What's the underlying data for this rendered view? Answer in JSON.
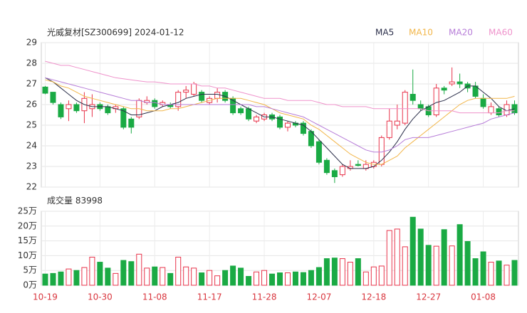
{
  "chart_data": {
    "type": "candlestick",
    "title": "光威复材[SZ300699] 2024-01-12",
    "categories": [
      "10-19",
      null,
      null,
      null,
      null,
      null,
      null,
      "10-30",
      null,
      null,
      null,
      null,
      null,
      null,
      "11-08",
      null,
      null,
      null,
      null,
      null,
      null,
      "11-17",
      null,
      null,
      null,
      null,
      null,
      null,
      "11-28",
      null,
      null,
      null,
      null,
      null,
      null,
      "12-07",
      null,
      null,
      null,
      null,
      null,
      null,
      "12-18",
      null,
      null,
      null,
      null,
      null,
      null,
      "12-27",
      null,
      null,
      null,
      null,
      null,
      null,
      "01-08",
      null,
      null,
      null,
      null
    ],
    "open": [
      26.85,
      26.6,
      26.0,
      25.8,
      26.0,
      25.7,
      25.8,
      26.0,
      25.9,
      25.8,
      25.8,
      25.3,
      25.4,
      26.1,
      26.2,
      26.0,
      26.0,
      25.9,
      26.6,
      26.5,
      26.6,
      26.1,
      26.3,
      26.6,
      26.3,
      25.8,
      25.8,
      25.2,
      25.3,
      25.5,
      25.4,
      24.9,
      25.1,
      25.1,
      24.7,
      24.2,
      23.3,
      22.8,
      22.6,
      22.9,
      23.1,
      22.9,
      23.0,
      23.1,
      24.4,
      25.0,
      25.1,
      26.5,
      26.0,
      25.9,
      25.5,
      26.8,
      27.0,
      27.1,
      27.0,
      26.9,
      26.3,
      25.6,
      25.8,
      25.5,
      26.0
    ],
    "high": [
      26.9,
      26.6,
      26.1,
      26.2,
      26.1,
      26.6,
      26.5,
      26.1,
      26.0,
      26.0,
      25.9,
      25.4,
      26.3,
      26.4,
      26.3,
      26.2,
      26.1,
      26.7,
      26.9,
      27.1,
      26.7,
      26.4,
      26.8,
      26.7,
      26.4,
      25.9,
      25.9,
      25.5,
      25.6,
      25.6,
      25.5,
      25.2,
      25.2,
      25.2,
      24.8,
      24.3,
      23.4,
      22.9,
      23.1,
      23.3,
      23.3,
      23.3,
      23.3,
      24.5,
      25.8,
      26.0,
      26.7,
      27.7,
      26.2,
      26.0,
      27.0,
      26.9,
      27.8,
      27.5,
      27.1,
      27.1,
      26.5,
      26.1,
      25.9,
      26.2,
      26.2
    ],
    "low": [
      26.5,
      26.0,
      25.3,
      25.2,
      25.6,
      25.1,
      25.4,
      25.7,
      25.5,
      25.6,
      24.8,
      24.6,
      25.3,
      26.0,
      25.8,
      25.9,
      25.8,
      25.7,
      26.3,
      26.4,
      26.1,
      26.0,
      26.1,
      26.1,
      25.5,
      25.5,
      25.2,
      25.1,
      25.2,
      25.2,
      24.8,
      24.7,
      24.9,
      24.5,
      23.9,
      23.1,
      22.6,
      22.2,
      22.5,
      22.8,
      23.0,
      22.8,
      22.9,
      23.0,
      24.3,
      24.8,
      25.0,
      26.0,
      25.7,
      25.4,
      25.4,
      26.5,
      26.9,
      26.8,
      26.6,
      26.3,
      25.8,
      25.5,
      25.4,
      25.4,
      25.5
    ],
    "close": [
      26.55,
      26.1,
      25.4,
      26.0,
      25.7,
      26.3,
      26.0,
      25.8,
      25.6,
      25.9,
      24.9,
      24.9,
      26.2,
      26.2,
      25.9,
      26.1,
      25.9,
      26.6,
      26.7,
      27.0,
      26.2,
      26.3,
      26.6,
      26.2,
      25.6,
      25.6,
      25.3,
      25.4,
      25.5,
      25.3,
      24.9,
      25.1,
      25.0,
      24.6,
      24.0,
      23.2,
      22.7,
      22.5,
      23.0,
      23.0,
      23.05,
      23.1,
      23.2,
      24.4,
      25.2,
      25.2,
      26.6,
      26.2,
      25.8,
      25.5,
      26.8,
      26.7,
      27.1,
      27.0,
      26.8,
      26.4,
      25.9,
      25.9,
      25.5,
      26.0,
      25.6
    ],
    "up_color": "#e8334a",
    "down_color": "#1aaa44",
    "series": [
      {
        "name": "MA5",
        "color": "#2b2f4a",
        "values": [
          27.3,
          27.1,
          26.8,
          26.5,
          26.2,
          26.0,
          25.9,
          25.9,
          25.9,
          25.8,
          25.7,
          25.5,
          25.5,
          25.6,
          25.7,
          25.9,
          26.0,
          26.1,
          26.3,
          26.4,
          26.5,
          26.5,
          26.5,
          26.4,
          26.2,
          26.0,
          25.8,
          25.6,
          25.4,
          25.4,
          25.3,
          25.2,
          25.1,
          25.0,
          24.7,
          24.3,
          23.9,
          23.5,
          23.1,
          22.9,
          22.9,
          22.9,
          23.0,
          23.3,
          23.7,
          24.2,
          24.8,
          25.3,
          25.7,
          25.9,
          26.1,
          26.2,
          26.4,
          26.6,
          26.9,
          26.9,
          26.6,
          26.3,
          25.9,
          25.7,
          25.8
        ]
      },
      {
        "name": "MA10",
        "color": "#f2b64a",
        "values": [
          27.2,
          27.1,
          26.9,
          26.8,
          26.6,
          26.4,
          26.3,
          26.2,
          26.1,
          26.0,
          25.9,
          25.8,
          25.8,
          25.7,
          25.7,
          25.7,
          25.8,
          25.8,
          25.9,
          26.0,
          26.1,
          26.2,
          26.3,
          26.3,
          26.3,
          26.3,
          26.2,
          26.1,
          26.0,
          25.8,
          25.6,
          25.5,
          25.4,
          25.3,
          25.0,
          24.8,
          24.5,
          24.2,
          23.9,
          23.6,
          23.4,
          23.2,
          23.1,
          23.1,
          23.3,
          23.5,
          23.9,
          24.2,
          24.5,
          24.8,
          25.1,
          25.4,
          25.7,
          26.0,
          26.2,
          26.3,
          26.3,
          26.3,
          26.3,
          26.3,
          26.4
        ]
      },
      {
        "name": "MA20",
        "color": "#b77dd8",
        "values": [
          27.3,
          27.2,
          27.1,
          27.0,
          26.9,
          26.8,
          26.7,
          26.6,
          26.5,
          26.4,
          26.3,
          26.2,
          26.2,
          26.1,
          26.1,
          26.0,
          26.0,
          26.0,
          26.0,
          26.0,
          26.0,
          26.0,
          26.0,
          26.0,
          26.0,
          26.0,
          26.0,
          25.9,
          25.9,
          25.8,
          25.7,
          25.6,
          25.5,
          25.4,
          25.2,
          25.0,
          24.8,
          24.6,
          24.4,
          24.2,
          24.0,
          23.8,
          23.7,
          23.7,
          23.8,
          24.0,
          24.3,
          24.4,
          24.4,
          24.4,
          24.5,
          24.6,
          24.7,
          24.8,
          24.9,
          25.0,
          25.1,
          25.3,
          25.4,
          25.5,
          25.6
        ]
      },
      {
        "name": "MA60",
        "color": "#ef92cb",
        "values": [
          28.1,
          28.0,
          27.9,
          27.9,
          27.8,
          27.7,
          27.6,
          27.5,
          27.4,
          27.3,
          27.25,
          27.2,
          27.15,
          27.1,
          27.1,
          27.05,
          27.0,
          27.0,
          27.0,
          27.0,
          26.9,
          26.9,
          26.8,
          26.8,
          26.7,
          26.6,
          26.5,
          26.4,
          26.3,
          26.3,
          26.3,
          26.2,
          26.2,
          26.2,
          26.2,
          26.1,
          26.0,
          26.0,
          25.9,
          25.9,
          25.9,
          25.9,
          25.8,
          25.8,
          25.8,
          25.8,
          25.8,
          25.8,
          25.8,
          25.7,
          25.7,
          25.7,
          25.7,
          25.6,
          25.6,
          25.6,
          25.6,
          25.6,
          25.6,
          25.7,
          25.7
        ]
      }
    ],
    "ylim": [
      22,
      29
    ],
    "yticks": [
      22,
      23,
      24,
      25,
      26,
      27,
      28,
      29
    ],
    "volume_label": "成交量",
    "volume": [
      38000,
      40000,
      45000,
      55000,
      50000,
      60000,
      95000,
      78000,
      58000,
      40000,
      84000,
      80000,
      105000,
      58000,
      62000,
      60000,
      40000,
      95000,
      62000,
      58000,
      42000,
      50000,
      32000,
      50000,
      65000,
      58000,
      30000,
      45000,
      50000,
      38000,
      42000,
      42000,
      45000,
      43000,
      50000,
      60000,
      90000,
      92000,
      90000,
      78000,
      90000,
      45000,
      62000,
      65000,
      185000,
      190000,
      130000,
      230000,
      190000,
      135000,
      132000,
      188000,
      133000,
      205000,
      148000,
      90000,
      113000,
      78000,
      82000,
      68000,
      83998
    ],
    "vlim": [
      0,
      250000
    ],
    "vticks": [
      {
        "value": 0,
        "label": "0万"
      },
      {
        "value": 50000,
        "label": "5万"
      },
      {
        "value": 100000,
        "label": "10万"
      },
      {
        "value": 150000,
        "label": "15万"
      },
      {
        "value": 200000,
        "label": "20万"
      },
      {
        "value": 250000,
        "label": "25万"
      }
    ],
    "grid": true
  }
}
